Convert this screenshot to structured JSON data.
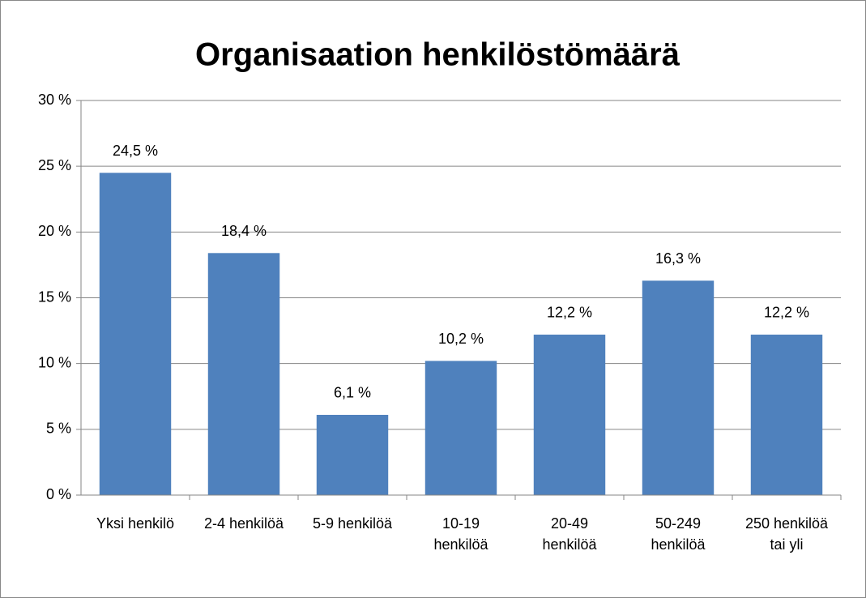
{
  "chart_data": {
    "type": "bar",
    "title": "Organisaation henkilöstömäärä",
    "categories": [
      "Yksi henkilö",
      "2-4 henkilöä",
      "5-9 henkilöä",
      "10-19 henkilöä",
      "20-49 henkilöä",
      "50-249 henkilöä",
      "250 henkilöä tai yli"
    ],
    "values": [
      24.5,
      18.4,
      6.1,
      10.2,
      12.2,
      16.3,
      12.2
    ],
    "value_labels": [
      "24,5 %",
      "18,4 %",
      "6,1 %",
      "10,2 %",
      "12,2 %",
      "16,3 %",
      "12,2 %"
    ],
    "color": "#4f81bd",
    "ylim": [
      0,
      30
    ],
    "yticks": [
      {
        "value": 0,
        "label": "0 %"
      },
      {
        "value": 5,
        "label": "5 %"
      },
      {
        "value": 10,
        "label": "10 %"
      },
      {
        "value": 15,
        "label": "15 %"
      },
      {
        "value": 20,
        "label": "20 %"
      },
      {
        "value": 25,
        "label": "25 %"
      },
      {
        "value": 30,
        "label": "30 %"
      }
    ],
    "grid": true
  }
}
